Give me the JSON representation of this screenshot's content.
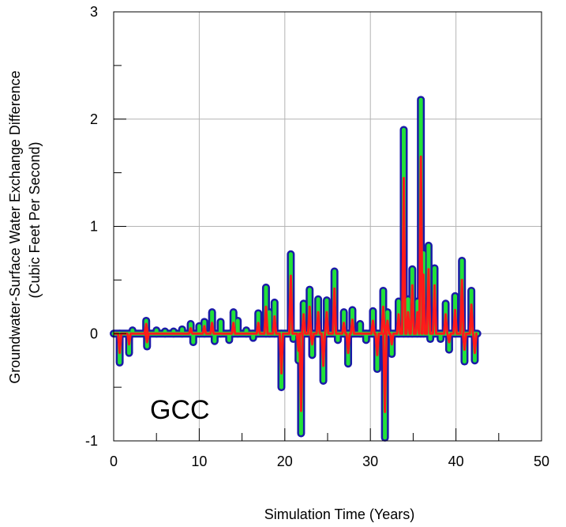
{
  "chart_data": {
    "type": "line",
    "title": "",
    "xlabel": "Simulation Time (Years)",
    "ylabel_lines": [
      "Groundwater-Surface Water Exchange Difference",
      "(Cubic Feet Per Second)"
    ],
    "xlim": [
      0,
      50
    ],
    "ylim": [
      -1,
      3
    ],
    "x_ticks": [
      0,
      10,
      20,
      30,
      40,
      50
    ],
    "y_ticks": [
      -1,
      0,
      1,
      2,
      3
    ],
    "x_tick_labels": [
      "0",
      "10",
      "20",
      "30",
      "40",
      "50"
    ],
    "y_tick_labels": [
      "-1",
      "0",
      "1",
      "2",
      "3"
    ],
    "grid": true,
    "annotation": "GCC",
    "colors": {
      "outline": "#1a1aa8",
      "envelope": "#22e03a",
      "series": "#ff1a1a",
      "grid": "#b4b4b4"
    },
    "envelope_spikes": [
      [
        0.7,
        -0.27
      ],
      [
        1.8,
        -0.18
      ],
      [
        2.2,
        0.03
      ],
      [
        3.8,
        0.12
      ],
      [
        3.9,
        -0.12
      ],
      [
        5.0,
        0.03
      ],
      [
        6.0,
        0.02
      ],
      [
        7.0,
        0.02
      ],
      [
        8.0,
        0.04
      ],
      [
        9.0,
        0.09
      ],
      [
        9.3,
        -0.08
      ],
      [
        10.0,
        0.07
      ],
      [
        10.6,
        0.11
      ],
      [
        11.5,
        0.2
      ],
      [
        11.8,
        -0.07
      ],
      [
        12.5,
        0.11
      ],
      [
        13.5,
        -0.06
      ],
      [
        14.0,
        0.2
      ],
      [
        14.5,
        0.12
      ],
      [
        15.5,
        0.03
      ],
      [
        16.3,
        -0.04
      ],
      [
        16.9,
        0.19
      ],
      [
        17.8,
        0.43
      ],
      [
        18.2,
        0.2
      ],
      [
        18.8,
        0.29
      ],
      [
        19.6,
        -0.5
      ],
      [
        20.7,
        0.74
      ],
      [
        21.0,
        -0.05
      ],
      [
        21.6,
        -0.25
      ],
      [
        21.9,
        -0.93
      ],
      [
        22.2,
        0.28
      ],
      [
        22.9,
        0.41
      ],
      [
        23.2,
        -0.2
      ],
      [
        23.9,
        0.32
      ],
      [
        24.5,
        -0.44
      ],
      [
        24.9,
        0.31
      ],
      [
        25.8,
        0.58
      ],
      [
        26.2,
        -0.06
      ],
      [
        26.9,
        0.2
      ],
      [
        27.4,
        -0.28
      ],
      [
        27.9,
        0.22
      ],
      [
        28.8,
        0.09
      ],
      [
        29.5,
        -0.06
      ],
      [
        30.3,
        0.21
      ],
      [
        30.8,
        -0.33
      ],
      [
        31.5,
        0.4
      ],
      [
        31.7,
        -0.97
      ],
      [
        32.0,
        0.2
      ],
      [
        32.5,
        -0.19
      ],
      [
        33.3,
        0.3
      ],
      [
        33.9,
        1.9
      ],
      [
        34.4,
        0.32
      ],
      [
        34.9,
        0.6
      ],
      [
        35.5,
        0.3
      ],
      [
        35.9,
        2.18
      ],
      [
        36.2,
        0.75
      ],
      [
        36.8,
        0.82
      ],
      [
        37.0,
        -0.05
      ],
      [
        37.5,
        0.61
      ],
      [
        38.2,
        -0.05
      ],
      [
        38.8,
        0.28
      ],
      [
        39.2,
        -0.15
      ],
      [
        39.9,
        0.35
      ],
      [
        40.7,
        0.68
      ],
      [
        41.0,
        -0.26
      ],
      [
        41.8,
        0.4
      ],
      [
        42.2,
        -0.25
      ]
    ],
    "series_spikes": [
      [
        0.7,
        -0.18
      ],
      [
        1.8,
        -0.1
      ],
      [
        3.8,
        0.09
      ],
      [
        3.9,
        -0.08
      ],
      [
        9.0,
        0.05
      ],
      [
        10.6,
        0.07
      ],
      [
        11.5,
        0.1
      ],
      [
        14.0,
        0.1
      ],
      [
        16.9,
        0.1
      ],
      [
        17.8,
        0.25
      ],
      [
        18.8,
        0.16
      ],
      [
        19.6,
        -0.37
      ],
      [
        20.7,
        0.54
      ],
      [
        21.6,
        -0.16
      ],
      [
        21.9,
        -0.72
      ],
      [
        22.2,
        0.18
      ],
      [
        22.9,
        0.25
      ],
      [
        23.2,
        -0.1
      ],
      [
        23.9,
        0.2
      ],
      [
        24.5,
        -0.3
      ],
      [
        24.9,
        0.2
      ],
      [
        25.8,
        0.42
      ],
      [
        26.9,
        0.1
      ],
      [
        27.4,
        -0.18
      ],
      [
        27.9,
        0.13
      ],
      [
        30.3,
        0.12
      ],
      [
        30.8,
        -0.2
      ],
      [
        31.5,
        0.25
      ],
      [
        31.7,
        -0.73
      ],
      [
        32.0,
        0.12
      ],
      [
        32.5,
        -0.1
      ],
      [
        33.3,
        0.18
      ],
      [
        33.9,
        1.45
      ],
      [
        34.4,
        0.2
      ],
      [
        34.9,
        0.45
      ],
      [
        35.5,
        0.2
      ],
      [
        35.9,
        1.65
      ],
      [
        36.2,
        0.55
      ],
      [
        36.8,
        0.6
      ],
      [
        37.5,
        0.45
      ],
      [
        38.8,
        0.18
      ],
      [
        39.2,
        -0.08
      ],
      [
        39.9,
        0.22
      ],
      [
        40.7,
        0.5
      ],
      [
        41.0,
        -0.15
      ],
      [
        41.8,
        0.27
      ],
      [
        42.2,
        -0.18
      ]
    ],
    "x_end": 42.5
  }
}
